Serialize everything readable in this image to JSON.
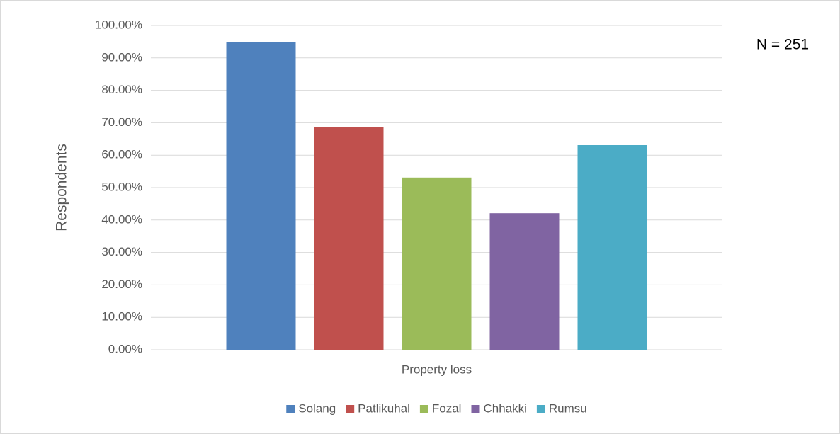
{
  "chart_data": {
    "type": "bar",
    "categories": [
      "Property loss"
    ],
    "y_label": "Respondents",
    "annotation": "N = 251",
    "series": [
      {
        "name": "Solang",
        "color": "#4f81bd",
        "values": [
          94.8
        ]
      },
      {
        "name": "Patlikuhal",
        "color": "#c0504d",
        "values": [
          68.6
        ]
      },
      {
        "name": "Fozal",
        "color": "#9bbb59",
        "values": [
          53.1
        ]
      },
      {
        "name": "Chhakki",
        "color": "#8064a2",
        "values": [
          42.1
        ]
      },
      {
        "name": "Rumsu",
        "color": "#4bacc6",
        "values": [
          63.1
        ]
      }
    ],
    "ylim": [
      0,
      100
    ],
    "yticks": [
      {
        "value": 0,
        "label": "0.00%"
      },
      {
        "value": 10,
        "label": "10.00%"
      },
      {
        "value": 20,
        "label": "20.00%"
      },
      {
        "value": 30,
        "label": "30.00%"
      },
      {
        "value": 40,
        "label": "40.00%"
      },
      {
        "value": 50,
        "label": "50.00%"
      },
      {
        "value": 60,
        "label": "60.00%"
      },
      {
        "value": 70,
        "label": "70.00%"
      },
      {
        "value": 80,
        "label": "80.00%"
      },
      {
        "value": 90,
        "label": "90.00%"
      },
      {
        "value": 100,
        "label": "100.00%"
      }
    ],
    "grid": true,
    "legend": "bottom"
  }
}
